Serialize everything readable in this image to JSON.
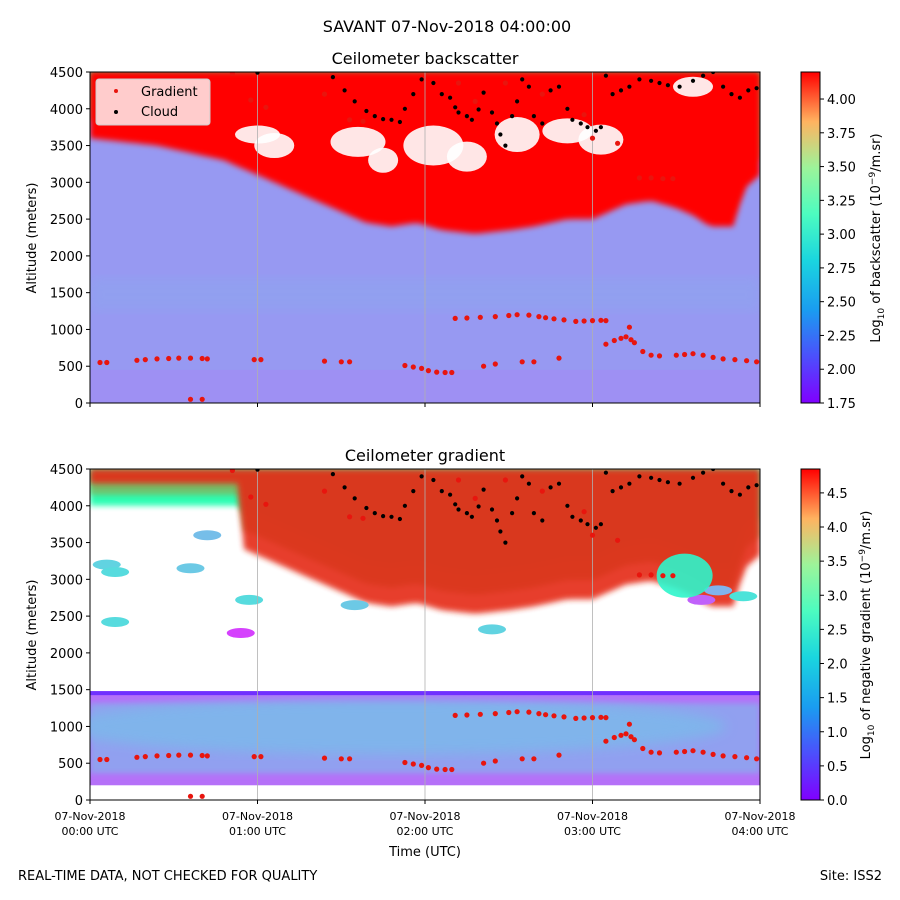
{
  "suptitle": "SAVANT 07-Nov-2018 04:00:00",
  "footer": {
    "left": "REAL-TIME DATA, NOT CHECKED FOR QUALITY",
    "right": "Site: ISS2"
  },
  "colors": {
    "gradient_marker": "#e8150e",
    "cloud_marker": "#000000",
    "grid": "#b0b0b0"
  },
  "shared_x": {
    "label": "Time (UTC)",
    "tick_labels": [
      [
        "07-Nov-2018",
        "00:00 UTC"
      ],
      [
        "07-Nov-2018",
        "01:00 UTC"
      ],
      [
        "07-Nov-2018",
        "02:00 UTC"
      ],
      [
        "07-Nov-2018",
        "03:00 UTC"
      ],
      [
        "07-Nov-2018",
        "04:00 UTC"
      ]
    ]
  },
  "chart_data": [
    {
      "type": "heatmap",
      "title": "Ceilometer backscatter",
      "xlabel": "Time (UTC)",
      "ylabel": "Altitude (meters)",
      "xlim_hours": [
        0,
        4
      ],
      "ylim": [
        0,
        4500
      ],
      "yticks": [
        "0",
        "500",
        "1000",
        "1500",
        "2000",
        "2500",
        "3000",
        "3500",
        "4000",
        "4500"
      ],
      "colorbar": {
        "label": "Log10 of backscatter (10^-9/m.sr)",
        "label_parts": [
          "Log",
          "10",
          " of backscatter (10",
          "−9",
          "/m.sr)"
        ],
        "range": [
          1.75,
          4.2
        ],
        "ticks": [
          "1.75",
          "2.00",
          "2.25",
          "2.50",
          "2.75",
          "3.00",
          "3.25",
          "3.50",
          "3.75",
          "4.00"
        ],
        "colormap": "rainbow"
      },
      "legend": {
        "entries": [
          "Gradient",
          "Cloud"
        ],
        "location": "upper-left"
      },
      "field": {
        "background_level": 2.25,
        "low_band_level": 2.2,
        "cloud_base_m": [
          4000,
          3950,
          3900,
          3700,
          3500,
          3200,
          3000,
          2850,
          2800,
          2850,
          2750,
          2700,
          2750,
          2800,
          2850,
          2900,
          2900,
          3000,
          3100,
          3150,
          3050,
          2950,
          2800,
          2800,
          3300,
          3500
        ],
        "cloud_base_hours": [
          0,
          0.2,
          0.4,
          0.8,
          1.0,
          1.3,
          1.5,
          1.65,
          1.8,
          1.95,
          2.1,
          2.3,
          2.5,
          2.65,
          2.75,
          2.85,
          3.0,
          3.1,
          3.2,
          3.35,
          3.5,
          3.6,
          3.7,
          3.85,
          3.9,
          4.0
        ]
      },
      "series": [
        {
          "name": "Gradient",
          "marker": "red-dot",
          "points": [
            [
              0.06,
              550
            ],
            [
              0.1,
              550
            ],
            [
              0.28,
              580
            ],
            [
              0.33,
              590
            ],
            [
              0.4,
              600
            ],
            [
              0.47,
              605
            ],
            [
              0.53,
              610
            ],
            [
              0.6,
              610
            ],
            [
              0.67,
              605
            ],
            [
              0.7,
              600
            ],
            [
              0.98,
              590
            ],
            [
              1.02,
              590
            ],
            [
              1.4,
              570
            ],
            [
              1.5,
              560
            ],
            [
              1.55,
              560
            ],
            [
              1.88,
              510
            ],
            [
              1.93,
              490
            ],
            [
              1.98,
              470
            ],
            [
              2.02,
              440
            ],
            [
              2.07,
              420
            ],
            [
              2.12,
              415
            ],
            [
              2.16,
              415
            ],
            [
              2.18,
              1150
            ],
            [
              2.25,
              1155
            ],
            [
              2.33,
              1165
            ],
            [
              2.42,
              1175
            ],
            [
              2.5,
              1190
            ],
            [
              2.55,
              1200
            ],
            [
              2.62,
              1195
            ],
            [
              2.68,
              1175
            ],
            [
              2.72,
              1160
            ],
            [
              2.77,
              1145
            ],
            [
              2.83,
              1130
            ],
            [
              2.9,
              1110
            ],
            [
              2.95,
              1115
            ],
            [
              3.0,
              1120
            ],
            [
              3.05,
              1125
            ],
            [
              3.08,
              1120
            ],
            [
              2.35,
              500
            ],
            [
              2.42,
              530
            ],
            [
              2.58,
              560
            ],
            [
              2.65,
              560
            ],
            [
              2.8,
              610
            ],
            [
              3.08,
              800
            ],
            [
              3.13,
              850
            ],
            [
              3.17,
              880
            ],
            [
              3.2,
              900
            ],
            [
              3.23,
              860
            ],
            [
              3.25,
              820
            ],
            [
              3.3,
              700
            ],
            [
              3.35,
              650
            ],
            [
              3.4,
              640
            ],
            [
              3.5,
              650
            ],
            [
              3.55,
              660
            ],
            [
              3.6,
              670
            ],
            [
              3.66,
              650
            ],
            [
              3.72,
              620
            ],
            [
              3.78,
              600
            ],
            [
              3.85,
              590
            ],
            [
              3.92,
              575
            ],
            [
              3.98,
              560
            ],
            [
              3.22,
              1030
            ],
            [
              3.28,
              3060
            ],
            [
              3.35,
              3060
            ],
            [
              3.42,
              3050
            ],
            [
              3.48,
              3050
            ],
            [
              0.6,
              50
            ],
            [
              0.67,
              50
            ],
            [
              0.85,
              4480
            ],
            [
              0.96,
              4120
            ],
            [
              1.05,
              4020
            ],
            [
              1.4,
              4200
            ],
            [
              1.55,
              3850
            ],
            [
              1.63,
              3830
            ],
            [
              2.2,
              4350
            ],
            [
              2.3,
              4100
            ],
            [
              2.48,
              4350
            ],
            [
              2.7,
              4200
            ],
            [
              2.95,
              3920
            ],
            [
              3.0,
              3600
            ],
            [
              3.15,
              3530
            ]
          ]
        },
        {
          "name": "Cloud",
          "marker": "black-dot",
          "points": [
            [
              1.0,
              4490
            ],
            [
              1.45,
              4430
            ],
            [
              1.52,
              4250
            ],
            [
              1.58,
              4100
            ],
            [
              1.65,
              3970
            ],
            [
              1.7,
              3900
            ],
            [
              1.75,
              3860
            ],
            [
              1.8,
              3850
            ],
            [
              1.85,
              3820
            ],
            [
              1.88,
              4000
            ],
            [
              1.93,
              4200
            ],
            [
              1.98,
              4400
            ],
            [
              2.05,
              4350
            ],
            [
              2.1,
              4200
            ],
            [
              2.15,
              4150
            ],
            [
              2.18,
              4020
            ],
            [
              2.2,
              3950
            ],
            [
              2.25,
              3900
            ],
            [
              2.28,
              3850
            ],
            [
              2.32,
              3990
            ],
            [
              2.35,
              4220
            ],
            [
              2.4,
              3950
            ],
            [
              2.43,
              3800
            ],
            [
              2.45,
              3650
            ],
            [
              2.48,
              3500
            ],
            [
              2.52,
              3900
            ],
            [
              2.55,
              4100
            ],
            [
              2.58,
              4400
            ],
            [
              2.62,
              4300
            ],
            [
              2.65,
              3900
            ],
            [
              2.7,
              3800
            ],
            [
              2.75,
              4250
            ],
            [
              2.8,
              4300
            ],
            [
              2.85,
              4000
            ],
            [
              2.88,
              3850
            ],
            [
              2.93,
              3800
            ],
            [
              2.97,
              3750
            ],
            [
              3.02,
              3700
            ],
            [
              3.05,
              3750
            ],
            [
              3.08,
              4450
            ],
            [
              3.12,
              4200
            ],
            [
              3.17,
              4250
            ],
            [
              3.22,
              4300
            ],
            [
              3.28,
              4400
            ],
            [
              3.35,
              4380
            ],
            [
              3.4,
              4350
            ],
            [
              3.45,
              4320
            ],
            [
              3.52,
              4300
            ],
            [
              3.6,
              4380
            ],
            [
              3.66,
              4450
            ],
            [
              3.72,
              4500
            ],
            [
              3.78,
              4300
            ],
            [
              3.83,
              4200
            ],
            [
              3.88,
              4150
            ],
            [
              3.93,
              4250
            ],
            [
              3.98,
              4280
            ]
          ]
        }
      ]
    },
    {
      "type": "heatmap",
      "title": "Ceilometer gradient",
      "xlabel": "Time (UTC)",
      "ylabel": "Altitude (meters)",
      "xlim_hours": [
        0,
        4
      ],
      "ylim": [
        0,
        4500
      ],
      "yticks": [
        "0",
        "500",
        "1000",
        "1500",
        "2000",
        "2500",
        "3000",
        "3500",
        "4000",
        "4500"
      ],
      "colorbar": {
        "label": "Log10 of negative gradient (10^-9/m.sr)",
        "label_parts": [
          "Log",
          "10",
          " of negative gradient (10",
          "−9",
          "/m.sr)"
        ],
        "range": [
          0.0,
          4.85
        ],
        "ticks": [
          "0.0",
          "0.5",
          "1.0",
          "1.5",
          "2.0",
          "2.5",
          "3.0",
          "3.5",
          "4.0",
          "4.5"
        ],
        "colormap": "rainbow"
      },
      "field": {
        "band_bottom_m": 200,
        "band_top_m": 1480,
        "band_levels": [
          0.7,
          1.05,
          1.25,
          0.95
        ],
        "upper_levels": [
          2.6,
          3.6,
          4.6
        ]
      },
      "series": [
        {
          "name": "Gradient",
          "marker": "red-dot",
          "same_points_as_panel": 0
        },
        {
          "name": "Cloud",
          "marker": "black-dot",
          "same_points_as_panel": 0
        }
      ]
    }
  ]
}
